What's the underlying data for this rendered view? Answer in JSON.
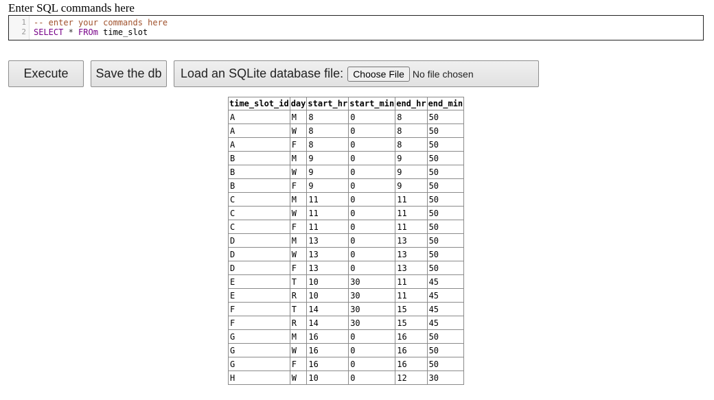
{
  "header": {
    "title": "Enter SQL commands here"
  },
  "editor": {
    "line_numbers": [
      "1",
      "2"
    ],
    "line1": "-- enter your commands here",
    "line2": {
      "keyword1": "SELECT",
      "star": " * ",
      "keyword2": "FROm",
      "table": " time_slot"
    }
  },
  "toolbar": {
    "execute_label": "Execute",
    "save_label": "Save the db",
    "load_label": "Load an SQLite database file:",
    "choose_file_label": "Choose File",
    "no_file_label": "No file chosen"
  },
  "results": {
    "columns": [
      "time_slot_id",
      "day",
      "start_hr",
      "start_min",
      "end_hr",
      "end_min"
    ],
    "rows": [
      [
        "A",
        "M",
        "8",
        "0",
        "8",
        "50"
      ],
      [
        "A",
        "W",
        "8",
        "0",
        "8",
        "50"
      ],
      [
        "A",
        "F",
        "8",
        "0",
        "8",
        "50"
      ],
      [
        "B",
        "M",
        "9",
        "0",
        "9",
        "50"
      ],
      [
        "B",
        "W",
        "9",
        "0",
        "9",
        "50"
      ],
      [
        "B",
        "F",
        "9",
        "0",
        "9",
        "50"
      ],
      [
        "C",
        "M",
        "11",
        "0",
        "11",
        "50"
      ],
      [
        "C",
        "W",
        "11",
        "0",
        "11",
        "50"
      ],
      [
        "C",
        "F",
        "11",
        "0",
        "11",
        "50"
      ],
      [
        "D",
        "M",
        "13",
        "0",
        "13",
        "50"
      ],
      [
        "D",
        "W",
        "13",
        "0",
        "13",
        "50"
      ],
      [
        "D",
        "F",
        "13",
        "0",
        "13",
        "50"
      ],
      [
        "E",
        "T",
        "10",
        "30",
        "11",
        "45"
      ],
      [
        "E",
        "R",
        "10",
        "30",
        "11",
        "45"
      ],
      [
        "F",
        "T",
        "14",
        "30",
        "15",
        "45"
      ],
      [
        "F",
        "R",
        "14",
        "30",
        "15",
        "45"
      ],
      [
        "G",
        "M",
        "16",
        "0",
        "16",
        "50"
      ],
      [
        "G",
        "W",
        "16",
        "0",
        "16",
        "50"
      ],
      [
        "G",
        "F",
        "16",
        "0",
        "16",
        "50"
      ],
      [
        "H",
        "W",
        "10",
        "0",
        "12",
        "30"
      ]
    ]
  }
}
